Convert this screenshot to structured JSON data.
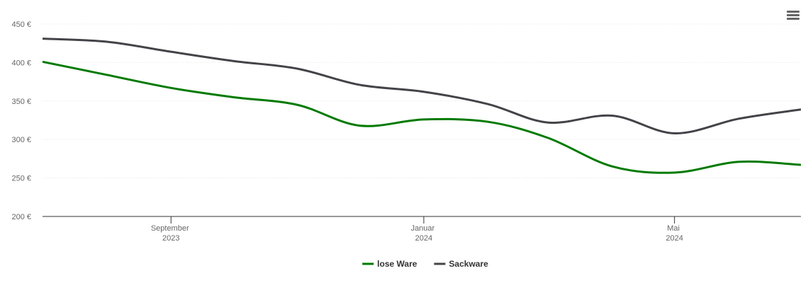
{
  "chart_data": {
    "type": "line",
    "x": [
      "2023-07",
      "2023-08",
      "2023-09",
      "2023-10",
      "2023-11",
      "2023-12",
      "2024-01",
      "2024-02",
      "2024-03",
      "2024-04",
      "2024-05",
      "2024-06",
      "2024-07"
    ],
    "series": [
      {
        "name": "lose Ware",
        "color": "#007a00",
        "values": [
          401,
          384,
          367,
          355,
          345,
          318,
          326,
          323,
          302,
          265,
          257,
          271,
          267
        ]
      },
      {
        "name": "Sackware",
        "color": "#434348",
        "values": [
          431,
          427,
          414,
          402,
          392,
          371,
          362,
          346,
          322,
          331,
          308,
          327,
          339
        ]
      }
    ],
    "xlim": [
      "2023-07",
      "2024-07"
    ],
    "xticks": [
      {
        "value": "2023-09",
        "label": "September 2023"
      },
      {
        "value": "2024-01",
        "label": "Januar 2024"
      },
      {
        "value": "2024-05",
        "label": "Mai 2024"
      }
    ],
    "ylim": [
      200,
      450
    ],
    "yticks": [
      {
        "value": 200,
        "label": "200 €"
      },
      {
        "value": 250,
        "label": "250 €"
      },
      {
        "value": 300,
        "label": "300 €"
      },
      {
        "value": 350,
        "label": "350 €"
      },
      {
        "value": 400,
        "label": "400 €"
      },
      {
        "value": 450,
        "label": "450 €"
      }
    ],
    "grid": true,
    "legend": "bottom"
  }
}
